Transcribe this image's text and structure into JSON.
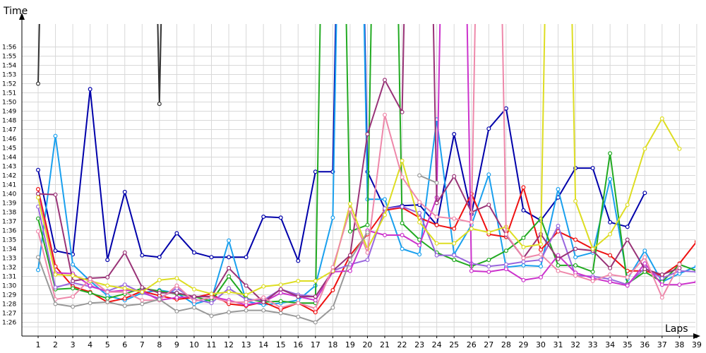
{
  "chart_data": {
    "type": "line",
    "xlabel": "Laps",
    "ylabel": "Time",
    "y_unit": "minutes:seconds",
    "grid": true,
    "legend": "none",
    "x": [
      1,
      2,
      3,
      4,
      5,
      6,
      7,
      8,
      9,
      10,
      11,
      12,
      13,
      14,
      15,
      16,
      17,
      18,
      19,
      20,
      21,
      22,
      23,
      24,
      25,
      26,
      27,
      28,
      29,
      30,
      31,
      32,
      33,
      34,
      35,
      36,
      37,
      38,
      39
    ],
    "x_ticks": [
      "1",
      "2",
      "3",
      "4",
      "5",
      "6",
      "7",
      "8",
      "9",
      "10",
      "11",
      "12",
      "13",
      "14",
      "15",
      "16",
      "17",
      "18",
      "19",
      "20",
      "21",
      "22",
      "23",
      "24",
      "25",
      "26",
      "27",
      "28",
      "29",
      "30",
      "31",
      "32",
      "33",
      "34",
      "35",
      "36",
      "37",
      "38",
      "39"
    ],
    "y_ticks": [
      "1:26",
      "1:27",
      "1:28",
      "1:29",
      "1:30",
      "1:31",
      "1:32",
      "1:33",
      "1:34",
      "1:35",
      "1:36",
      "1:37",
      "1:38",
      "1:39",
      "1:40",
      "1:41",
      "1:42",
      "1:43",
      "1:44",
      "1:45",
      "1:46",
      "1:47",
      "1:48",
      "1:49",
      "1:50",
      "1:51",
      "1:52",
      "1:53",
      "1:54",
      "1:55",
      "1:56"
    ],
    "y_tick_seconds": [
      86,
      87,
      88,
      89,
      90,
      91,
      92,
      93,
      94,
      95,
      96,
      97,
      98,
      99,
      100,
      101,
      102,
      103,
      104,
      105,
      106,
      107,
      108,
      109,
      110,
      111,
      112,
      113,
      114,
      115,
      116
    ],
    "ylim_seconds": [
      84.5,
      118.5
    ],
    "series": [
      {
        "color": "#0000aa",
        "values": [
          102.6,
          93.8,
          93.4,
          111.4,
          92.8,
          100.2,
          93.3,
          93.1,
          95.7,
          93.6,
          93.1,
          93.1,
          93.1,
          97.5,
          97.4,
          92.7,
          102.4,
          102.4,
          200,
          102.4,
          98.4,
          98.7,
          98.8,
          96.6,
          106.5,
          97.8,
          107.1,
          109.3,
          98.2,
          97.1,
          99.6,
          102.8,
          102.8,
          96.9,
          96.4,
          100.1,
          null,
          null,
          null
        ]
      },
      {
        "color": "#333333",
        "values": [
          112.0,
          200,
          null,
          null,
          null,
          null,
          200,
          109.8,
          200,
          null,
          null,
          null,
          null,
          null,
          null,
          null,
          null,
          null,
          null,
          null,
          null,
          null,
          null,
          null,
          null,
          null,
          null,
          null,
          null,
          null,
          null,
          null,
          null,
          null,
          null,
          null,
          null,
          null,
          null
        ]
      },
      {
        "color": "#1aa0ee",
        "values": [
          91.7,
          106.3,
          92.3,
          90.5,
          88.9,
          88.4,
          89.2,
          89.5,
          89.2,
          88.0,
          88.5,
          94.9,
          88.3,
          87.9,
          88.1,
          88.4,
          90.0,
          97.4,
          200,
          99.4,
          99.4,
          94.0,
          93.4,
          108.1,
          93.4,
          96.6,
          102.1,
          92.0,
          92.2,
          92.1,
          100.5,
          93.1,
          93.6,
          101.6,
          90.7,
          93.8,
          90.4,
          91.3,
          92.1
        ]
      },
      {
        "color": "#ee1111",
        "values": [
          100.5,
          92.1,
          89.9,
          89.3,
          88.2,
          88.6,
          89.4,
          88.9,
          88.5,
          88.7,
          89.1,
          88.0,
          87.8,
          88.2,
          87.4,
          88.1,
          87.1,
          89.5,
          93.3,
          95.6,
          98.2,
          98.5,
          97.4,
          96.6,
          96.2,
          100.0,
          95.6,
          95.3,
          100.7,
          93.9,
          95.9,
          95.0,
          94.0,
          93.3,
          91.6,
          91.6,
          91.1,
          92.4,
          94.8
        ]
      },
      {
        "color": "#22aa22",
        "values": [
          97.3,
          89.6,
          89.7,
          89.2,
          88.6,
          89.1,
          89.7,
          89.4,
          89.1,
          88.8,
          88.3,
          91.0,
          88.6,
          88.2,
          88.3,
          88.1,
          88.1,
          200,
          95.9,
          96.6,
          200,
          96.8,
          95.0,
          93.6,
          92.8,
          92.1,
          92.8,
          93.8,
          95.2,
          97.3,
          92.2,
          92.2,
          91.5,
          104.4,
          90.2,
          91.5,
          90.4,
          92.3,
          91.6
        ]
      },
      {
        "color": "#9966dd",
        "values": [
          98.6,
          89.8,
          90.3,
          89.9,
          89.4,
          90.1,
          89.2,
          88.6,
          89.7,
          88.5,
          88.1,
          89.7,
          88.5,
          88.4,
          89.6,
          89.0,
          88.8,
          91.6,
          92.3,
          92.8,
          98.4,
          98.6,
          97.9,
          93.3,
          93.3,
          92.4,
          92.1,
          92.3,
          92.6,
          92.8,
          96.5,
          91.1,
          91.0,
          90.7,
          90.1,
          91.9,
          90.8,
          91.6,
          91.5
        ]
      },
      {
        "color": "#cc33cc",
        "values": [
          100.0,
          91.4,
          91.3,
          90.0,
          89.3,
          89.5,
          89.4,
          88.4,
          88.7,
          88.8,
          88.8,
          88.4,
          87.9,
          88.2,
          89.2,
          88.8,
          88.4,
          91.5,
          91.6,
          96.0,
          95.5,
          95.5,
          94.4,
          99.6,
          200,
          91.6,
          91.5,
          91.8,
          90.6,
          90.9,
          93.3,
          91.4,
          90.8,
          90.4,
          90.0,
          92.4,
          90.1,
          90.1,
          90.4
        ]
      },
      {
        "color": "#993377",
        "values": [
          100.0,
          99.9,
          90.5,
          90.8,
          90.9,
          93.6,
          89.8,
          89.2,
          89.2,
          88.8,
          88.8,
          91.9,
          90.0,
          88.2,
          89.6,
          88.8,
          88.8,
          91.6,
          93.3,
          106.5,
          112.4,
          108.9,
          200,
          99.0,
          101.9,
          98.0,
          98.8,
          95.5,
          93.0,
          95.6,
          92.9,
          94.0,
          93.8,
          91.9,
          95.0,
          91.8,
          91.2,
          91.9,
          null
        ]
      },
      {
        "color": "#dddd22",
        "values": [
          99.6,
          91.2,
          91.1,
          90.5,
          90.0,
          89.7,
          89.3,
          90.6,
          90.8,
          89.6,
          89.1,
          89.3,
          89.0,
          89.9,
          90.1,
          90.5,
          90.5,
          91.6,
          98.9,
          94.0,
          97.7,
          103.6,
          96.9,
          94.6,
          94.6,
          96.2,
          95.8,
          96.4,
          94.2,
          94.5,
          200,
          99.2,
          94.0,
          95.6,
          98.8,
          104.9,
          108.2,
          104.9,
          null
        ]
      },
      {
        "color": "#ee88aa",
        "values": [
          95.9,
          88.5,
          88.8,
          90.7,
          89.3,
          89.3,
          88.4,
          88.4,
          90.0,
          88.3,
          88.7,
          88.2,
          88.2,
          88.7,
          87.6,
          88.1,
          87.5,
          92.0,
          98.3,
          93.6,
          108.6,
          101.8,
          99.1,
          97.5,
          97.3,
          96.9,
          200,
          95.6,
          93.0,
          93.4,
          91.6,
          91.1,
          90.5,
          91.2,
          90.9,
          93.1,
          88.7,
          92.3,
          null
        ]
      },
      {
        "color": "#999999",
        "values": [
          93.1,
          88.0,
          87.7,
          88.1,
          88.2,
          87.8,
          88.0,
          88.5,
          87.2,
          87.6,
          86.7,
          87.1,
          87.3,
          87.3,
          87.0,
          86.6,
          86.0,
          87.6,
          92.8,
          95.8,
          null,
          null,
          102.0,
          101.2,
          null,
          null,
          null,
          null,
          null,
          null,
          null,
          null,
          null,
          null,
          null,
          null,
          null,
          null,
          null
        ]
      }
    ]
  }
}
